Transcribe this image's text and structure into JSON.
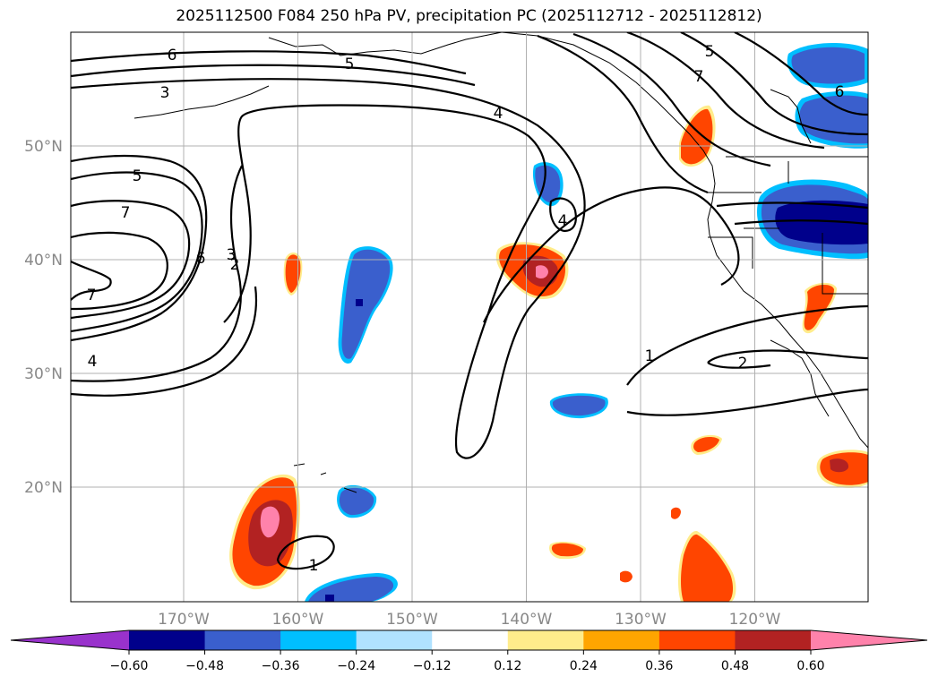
{
  "title": "2025112500 F084 250 hPa PV, precipitation PC (2025112712 - 2025112812)",
  "map": {
    "lat_ticks": [
      {
        "value": 50,
        "label": "50°N"
      },
      {
        "value": 40,
        "label": "40°N"
      },
      {
        "value": 30,
        "label": "30°N"
      },
      {
        "value": 20,
        "label": "20°N"
      }
    ],
    "lon_ticks": [
      {
        "value": -170,
        "label": "170°W"
      },
      {
        "value": -160,
        "label": "160°W"
      },
      {
        "value": -150,
        "label": "150°W"
      },
      {
        "value": -140,
        "label": "140°W"
      },
      {
        "value": -130,
        "label": "130°W"
      },
      {
        "value": -120,
        "label": "120°W"
      }
    ],
    "contour_labels": [
      "6",
      "5",
      "3",
      "4",
      "5",
      "7",
      "7",
      "6",
      "2",
      "3",
      "7",
      "4",
      "4",
      "5",
      "7",
      "6",
      "1",
      "2",
      "1"
    ]
  },
  "colorbar": {
    "boundaries": [
      "−0.60",
      "−0.48",
      "−0.36",
      "−0.24",
      "−0.12",
      "0.12",
      "0.24",
      "0.36",
      "0.48",
      "0.60"
    ],
    "colors": [
      "#9932cc",
      "#00008b",
      "#3a5fcd",
      "#00bfff",
      "#b0e2ff",
      "#ffffff",
      "#ffec8b",
      "#ffa500",
      "#ff4500",
      "#b22222",
      "#ff82ab"
    ]
  },
  "colors": {
    "neg_dark": "#00008b",
    "neg_mid": "#3a5fcd",
    "neg_light": "#00bfff",
    "pos_orange": "#ff4500",
    "pos_red": "#b22222",
    "pos_pink": "#ff82ab",
    "pos_yellow": "#ffec8b"
  }
}
